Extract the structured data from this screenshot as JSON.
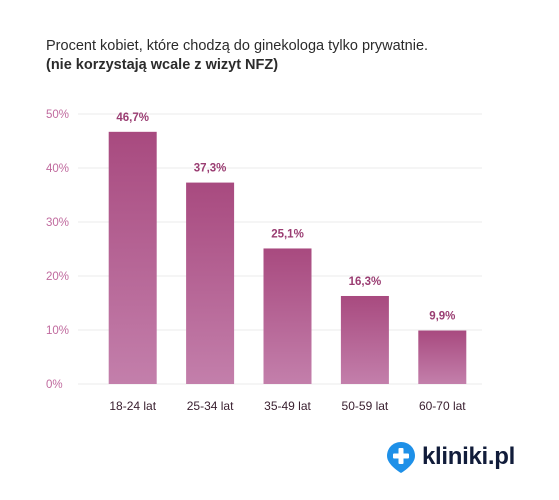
{
  "chart_data": {
    "type": "bar",
    "title": "Procent kobiet, które chodzą do ginekologa tylko prywatnie.",
    "subtitle": "(nie korzystają wcale z wizyt NFZ)",
    "categories": [
      "18-24 lat",
      "25-34 lat",
      "35-49 lat",
      "50-59 lat",
      "60-70 lat"
    ],
    "values": [
      46.7,
      37.3,
      25.1,
      16.3,
      9.9
    ],
    "value_labels": [
      "46,7%",
      "37,3%",
      "25,1%",
      "16,3%",
      "9,9%"
    ],
    "yticks": [
      0,
      10,
      20,
      30,
      40,
      50
    ],
    "ytick_labels": [
      "0%",
      "10%",
      "20%",
      "30%",
      "40%",
      "50%"
    ],
    "ylim": [
      0,
      50
    ],
    "grid": true,
    "colors": {
      "bar_top": "#a84a7f",
      "bar_bottom": "#c37fab",
      "axis_label": "#c06a9e",
      "value_label": "#9a3d72",
      "category_label": "#3a2030",
      "grid": "#ebebeb"
    }
  },
  "brand": {
    "logo_text": "kliniki.pl",
    "logo_icon": "medical-cross-pin-icon",
    "logo_color": "#1e90e8",
    "text_color": "#111c3a"
  }
}
